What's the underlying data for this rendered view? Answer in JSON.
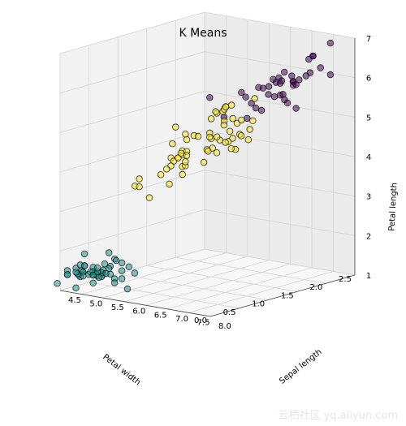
{
  "chart_data": {
    "type": "scatter",
    "title": "K Means",
    "xlabel": "Petal width",
    "ylabel": "Sepal length",
    "zlabel": "Petal length",
    "xlim": [
      0.0,
      2.5
    ],
    "ylim": [
      4.5,
      8.0
    ],
    "zlim": [
      1,
      7
    ],
    "x_ticks": [
      "0.0",
      "0.5",
      "1.0",
      "1.5",
      "2.0",
      "2.5"
    ],
    "y_ticks": [
      "4.5",
      "5.0",
      "5.5",
      "6.0",
      "6.5",
      "7.0",
      "7.5",
      "8.0"
    ],
    "z_ticks": [
      "1",
      "2",
      "3",
      "4",
      "5",
      "6",
      "7"
    ],
    "grid": true,
    "cluster_colors": [
      "#440154",
      "#21918c",
      "#fde725"
    ],
    "series": [
      {
        "color": "#440154",
        "points": [
          [
            1.8,
            6.3,
            5.6
          ],
          [
            2.3,
            6.5,
            5.8
          ],
          [
            2.1,
            7.1,
            5.9
          ],
          [
            1.8,
            7.3,
            6.3
          ],
          [
            2.0,
            7.7,
            6.7
          ],
          [
            2.2,
            6.5,
            5.8
          ],
          [
            2.5,
            7.2,
            6.1
          ],
          [
            2.3,
            7.7,
            6.9
          ],
          [
            1.9,
            6.4,
            5.3
          ],
          [
            2.1,
            6.8,
            5.5
          ],
          [
            2.0,
            7.7,
            6.7
          ],
          [
            2.3,
            6.9,
            5.7
          ],
          [
            2.4,
            6.7,
            5.6
          ],
          [
            2.3,
            6.9,
            5.1
          ],
          [
            1.8,
            7.2,
            6.0
          ],
          [
            2.1,
            7.4,
            6.1
          ],
          [
            1.8,
            7.9,
            6.4
          ],
          [
            2.2,
            6.4,
            5.6
          ],
          [
            1.5,
            6.3,
            5.1
          ],
          [
            1.4,
            6.1,
            5.6
          ],
          [
            2.3,
            7.7,
            6.1
          ],
          [
            2.4,
            6.3,
            5.6
          ],
          [
            1.8,
            6.4,
            5.5
          ],
          [
            2.1,
            6.9,
            5.4
          ],
          [
            2.4,
            6.7,
            5.7
          ],
          [
            2.3,
            6.7,
            5.2
          ],
          [
            1.9,
            6.5,
            5.2
          ],
          [
            2.0,
            6.8,
            5.5
          ],
          [
            2.2,
            6.7,
            5.8
          ],
          [
            1.9,
            6.3,
            4.9
          ],
          [
            1.8,
            6.7,
            5.8
          ],
          [
            2.0,
            7.6,
            6.6
          ],
          [
            2.5,
            6.7,
            5.7
          ],
          [
            2.0,
            6.5,
            5.1
          ],
          [
            2.3,
            6.8,
            5.9
          ],
          [
            1.6,
            7.2,
            5.8
          ],
          [
            2.1,
            6.4,
            5.6
          ],
          [
            2.0,
            7.0,
            5.6
          ]
        ]
      },
      {
        "color": "#21918c",
        "points": [
          [
            0.2,
            5.1,
            1.4
          ],
          [
            0.2,
            4.9,
            1.4
          ],
          [
            0.2,
            4.7,
            1.3
          ],
          [
            0.2,
            4.6,
            1.5
          ],
          [
            0.2,
            5.0,
            1.4
          ],
          [
            0.4,
            5.4,
            1.7
          ],
          [
            0.3,
            4.6,
            1.4
          ],
          [
            0.2,
            5.0,
            1.5
          ],
          [
            0.2,
            4.4,
            1.4
          ],
          [
            0.1,
            4.9,
            1.5
          ],
          [
            0.2,
            5.4,
            1.5
          ],
          [
            0.2,
            4.8,
            1.6
          ],
          [
            0.1,
            4.8,
            1.4
          ],
          [
            0.1,
            4.3,
            1.1
          ],
          [
            0.2,
            5.8,
            1.2
          ],
          [
            0.4,
            5.7,
            1.5
          ],
          [
            0.4,
            5.4,
            1.3
          ],
          [
            0.3,
            5.1,
            1.4
          ],
          [
            0.3,
            5.7,
            1.7
          ],
          [
            0.3,
            5.1,
            1.5
          ],
          [
            0.2,
            5.4,
            1.7
          ],
          [
            0.4,
            5.1,
            1.5
          ],
          [
            0.2,
            4.6,
            1.0
          ],
          [
            0.5,
            5.1,
            1.7
          ],
          [
            0.2,
            4.8,
            1.9
          ],
          [
            0.2,
            5.0,
            1.6
          ],
          [
            0.4,
            5.0,
            1.6
          ],
          [
            0.2,
            5.2,
            1.5
          ],
          [
            0.2,
            5.2,
            1.4
          ],
          [
            0.2,
            4.7,
            1.6
          ],
          [
            0.2,
            4.8,
            1.6
          ],
          [
            0.4,
            5.4,
            1.5
          ],
          [
            0.1,
            5.2,
            1.5
          ],
          [
            0.2,
            5.5,
            1.4
          ],
          [
            0.1,
            4.9,
            1.5
          ],
          [
            0.2,
            5.0,
            1.2
          ],
          [
            0.2,
            5.5,
            1.3
          ],
          [
            0.1,
            4.9,
            1.4
          ],
          [
            0.2,
            4.4,
            1.3
          ],
          [
            0.2,
            5.1,
            1.5
          ],
          [
            0.3,
            5.0,
            1.3
          ],
          [
            0.3,
            4.5,
            1.3
          ],
          [
            0.2,
            4.4,
            1.3
          ],
          [
            0.6,
            5.0,
            1.6
          ],
          [
            0.4,
            5.1,
            1.9
          ],
          [
            0.3,
            4.8,
            1.4
          ],
          [
            0.2,
            5.1,
            1.6
          ],
          [
            0.2,
            4.6,
            1.4
          ],
          [
            0.2,
            5.3,
            1.5
          ],
          [
            0.2,
            5.0,
            1.4
          ]
        ]
      },
      {
        "color": "#fde725",
        "points": [
          [
            1.4,
            7.0,
            4.7
          ],
          [
            1.5,
            6.4,
            4.5
          ],
          [
            1.5,
            6.9,
            4.9
          ],
          [
            1.3,
            5.5,
            4.0
          ],
          [
            1.5,
            6.5,
            4.6
          ],
          [
            1.3,
            5.7,
            4.5
          ],
          [
            1.6,
            6.3,
            4.7
          ],
          [
            1.0,
            4.9,
            3.3
          ],
          [
            1.3,
            6.6,
            4.6
          ],
          [
            1.4,
            5.2,
            3.9
          ],
          [
            1.0,
            5.0,
            3.5
          ],
          [
            1.5,
            5.9,
            4.2
          ],
          [
            1.0,
            6.0,
            4.0
          ],
          [
            1.4,
            6.1,
            4.7
          ],
          [
            1.3,
            5.6,
            3.6
          ],
          [
            1.4,
            6.7,
            4.4
          ],
          [
            1.5,
            5.6,
            4.5
          ],
          [
            1.0,
            5.8,
            4.1
          ],
          [
            1.5,
            6.2,
            4.5
          ],
          [
            1.1,
            5.6,
            3.9
          ],
          [
            1.8,
            5.9,
            4.8
          ],
          [
            1.3,
            6.1,
            4.0
          ],
          [
            1.5,
            6.3,
            4.9
          ],
          [
            1.2,
            6.1,
            4.7
          ],
          [
            1.3,
            6.4,
            4.3
          ],
          [
            1.4,
            6.6,
            4.4
          ],
          [
            1.4,
            6.8,
            4.8
          ],
          [
            1.7,
            6.7,
            5.0
          ],
          [
            1.5,
            6.0,
            4.5
          ],
          [
            1.0,
            5.7,
            3.5
          ],
          [
            1.1,
            5.5,
            3.8
          ],
          [
            1.0,
            5.5,
            3.7
          ],
          [
            1.2,
            5.8,
            3.9
          ],
          [
            1.6,
            6.0,
            5.1
          ],
          [
            1.5,
            5.4,
            4.5
          ],
          [
            1.6,
            6.0,
            4.5
          ],
          [
            1.5,
            6.7,
            4.7
          ],
          [
            1.3,
            6.3,
            4.4
          ],
          [
            1.3,
            5.6,
            4.1
          ],
          [
            1.3,
            5.5,
            4.0
          ],
          [
            1.2,
            5.5,
            4.4
          ],
          [
            1.4,
            6.1,
            4.6
          ],
          [
            1.2,
            5.8,
            4.0
          ],
          [
            1.0,
            5.0,
            3.3
          ],
          [
            1.3,
            5.6,
            4.2
          ],
          [
            1.2,
            5.7,
            4.2
          ],
          [
            1.3,
            5.7,
            4.2
          ],
          [
            1.3,
            6.2,
            4.3
          ],
          [
            1.1,
            5.1,
            3.0
          ],
          [
            1.3,
            5.7,
            4.1
          ],
          [
            1.9,
            5.8,
            5.1
          ],
          [
            1.7,
            4.9,
            4.5
          ],
          [
            1.8,
            5.7,
            5.0
          ],
          [
            2.0,
            5.6,
            4.9
          ],
          [
            2.0,
            5.8,
            5.1
          ],
          [
            1.8,
            6.2,
            4.8
          ],
          [
            1.8,
            6.1,
            4.9
          ],
          [
            1.8,
            6.3,
            4.9
          ],
          [
            1.5,
            6.0,
            5.0
          ],
          [
            1.8,
            5.9,
            5.1
          ],
          [
            1.9,
            5.8,
            5.1
          ],
          [
            2.4,
            5.8,
            5.1
          ]
        ]
      }
    ]
  },
  "watermark": "云栖社区 yq.aliyun.com"
}
